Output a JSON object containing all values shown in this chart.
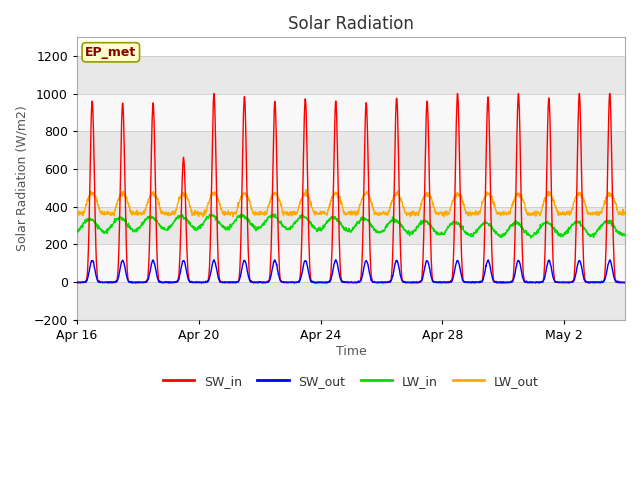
{
  "title": "Solar Radiation",
  "xlabel": "Time",
  "ylabel": "Solar Radiation (W/m2)",
  "ylim": [
    -200,
    1300
  ],
  "yticks": [
    -200,
    0,
    200,
    400,
    600,
    800,
    1000,
    1200
  ],
  "fig_bg_color": "#ffffff",
  "plot_bg_color": "#ffffff",
  "label_box_text": "EP_met",
  "label_box_facecolor": "#ffffcc",
  "label_box_edgecolor": "#999900",
  "label_box_textcolor": "#880000",
  "colors": {
    "SW_in": "#ff0000",
    "SW_out": "#0000ff",
    "LW_in": "#00dd00",
    "LW_out": "#ffaa00"
  },
  "xtick_labels": [
    "Apr 16",
    "Apr 20",
    "Apr 24",
    "Apr 28",
    "May 2"
  ],
  "xtick_positions": [
    0,
    4,
    8,
    12,
    16
  ],
  "n_days": 18,
  "band_colors": [
    "#e8e8e8",
    "#f8f8f8"
  ],
  "grid_color": "#cccccc"
}
